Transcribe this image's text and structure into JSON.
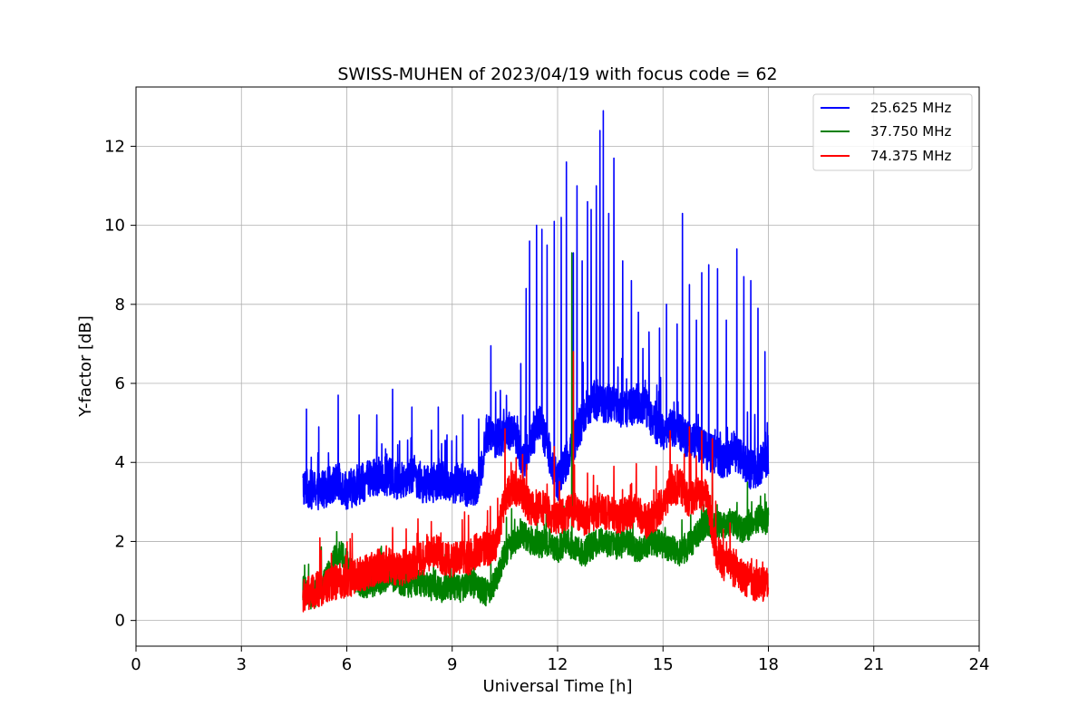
{
  "chart_data": {
    "type": "line",
    "title": "SWISS-MUHEN of 2023/04/19 with focus code = 62",
    "xlabel": "Universal Time [h]",
    "ylabel": "Y-factor [dB]",
    "xlim": [
      0,
      24
    ],
    "ylim": [
      -0.65,
      13.5
    ],
    "xticks": [
      0,
      3,
      6,
      9,
      12,
      15,
      18,
      21,
      24
    ],
    "yticks": [
      0,
      2,
      4,
      6,
      8,
      10,
      12
    ],
    "grid": true,
    "legend_position": "top-right",
    "series": [
      {
        "name": "25.625 MHz",
        "color": "#0000ff",
        "x": [
          4.75,
          5.0,
          5.25,
          5.5,
          5.75,
          6.0,
          6.25,
          6.5,
          6.75,
          7.0,
          7.25,
          7.5,
          7.75,
          8.0,
          8.25,
          8.5,
          8.75,
          9.0,
          9.25,
          9.5,
          9.75,
          10.0,
          10.25,
          10.5,
          10.75,
          11.0,
          11.25,
          11.5,
          11.75,
          12.0,
          12.25,
          12.5,
          12.75,
          13.0,
          13.25,
          13.5,
          13.75,
          14.0,
          14.25,
          14.5,
          14.75,
          15.0,
          15.25,
          15.5,
          15.75,
          16.0,
          16.25,
          16.5,
          16.75,
          17.0,
          17.25,
          17.5,
          17.75,
          18.0
        ],
        "y": [
          3.4,
          3.3,
          3.3,
          3.4,
          3.5,
          3.3,
          3.4,
          3.5,
          3.6,
          3.7,
          3.6,
          3.5,
          3.7,
          3.6,
          3.4,
          3.5,
          3.6,
          3.4,
          3.5,
          3.3,
          3.4,
          4.8,
          4.6,
          4.7,
          4.9,
          4.0,
          4.5,
          5.0,
          4.3,
          3.5,
          4.0,
          4.6,
          5.2,
          5.6,
          5.5,
          5.5,
          5.4,
          5.3,
          5.5,
          5.4,
          5.0,
          4.8,
          4.9,
          4.7,
          4.6,
          4.5,
          4.3,
          4.2,
          4.0,
          4.3,
          4.1,
          3.8,
          3.9,
          4.2
        ],
        "noise": 0.5,
        "spikes": [
          [
            4.85,
            5.35
          ],
          [
            5.2,
            4.9
          ],
          [
            5.75,
            5.7
          ],
          [
            6.35,
            5.2
          ],
          [
            6.85,
            5.2
          ],
          [
            7.3,
            5.85
          ],
          [
            7.85,
            5.4
          ],
          [
            8.6,
            5.4
          ],
          [
            9.3,
            5.2
          ],
          [
            9.75,
            5.1
          ],
          [
            10.1,
            6.95
          ],
          [
            10.5,
            5.0
          ],
          [
            10.95,
            6.5
          ],
          [
            11.1,
            8.4
          ],
          [
            11.2,
            9.6
          ],
          [
            11.4,
            10.0
          ],
          [
            11.55,
            9.9
          ],
          [
            11.7,
            9.5
          ],
          [
            11.9,
            10.1
          ],
          [
            12.1,
            10.2
          ],
          [
            12.25,
            11.6
          ],
          [
            12.45,
            9.3
          ],
          [
            12.55,
            11.0
          ],
          [
            12.7,
            9.1
          ],
          [
            12.85,
            10.6
          ],
          [
            12.95,
            10.4
          ],
          [
            13.1,
            11.0
          ],
          [
            13.2,
            12.4
          ],
          [
            13.3,
            12.9
          ],
          [
            13.45,
            10.3
          ],
          [
            13.6,
            11.7
          ],
          [
            13.85,
            9.1
          ],
          [
            14.1,
            8.6
          ],
          [
            14.3,
            7.8
          ],
          [
            14.6,
            7.3
          ],
          [
            14.9,
            7.4
          ],
          [
            15.1,
            8.0
          ],
          [
            15.4,
            7.5
          ],
          [
            15.55,
            10.3
          ],
          [
            15.75,
            8.5
          ],
          [
            15.95,
            7.6
          ],
          [
            16.1,
            8.8
          ],
          [
            16.3,
            9.0
          ],
          [
            16.55,
            8.9
          ],
          [
            16.8,
            7.6
          ],
          [
            17.1,
            9.4
          ],
          [
            17.3,
            8.7
          ],
          [
            17.5,
            8.6
          ],
          [
            17.7,
            7.9
          ],
          [
            17.9,
            6.8
          ]
        ]
      },
      {
        "name": "37.750 MHz",
        "color": "#008000",
        "x": [
          4.75,
          5.0,
          5.25,
          5.5,
          5.75,
          6.0,
          6.25,
          6.5,
          6.75,
          7.0,
          7.25,
          7.5,
          7.75,
          8.0,
          8.25,
          8.5,
          8.75,
          9.0,
          9.25,
          9.5,
          9.75,
          10.0,
          10.25,
          10.5,
          10.75,
          11.0,
          11.25,
          11.5,
          11.75,
          12.0,
          12.25,
          12.5,
          12.75,
          13.0,
          13.25,
          13.5,
          13.75,
          14.0,
          14.25,
          14.5,
          14.75,
          15.0,
          15.25,
          15.5,
          15.75,
          16.0,
          16.25,
          16.5,
          16.75,
          17.0,
          17.25,
          17.5,
          17.75,
          18.0
        ],
        "y": [
          0.8,
          0.6,
          0.8,
          1.2,
          1.8,
          1.5,
          1.0,
          0.9,
          0.9,
          1.0,
          1.1,
          1.0,
          0.9,
          1.0,
          0.9,
          0.8,
          0.8,
          0.9,
          0.8,
          1.0,
          0.8,
          0.7,
          1.0,
          1.7,
          2.0,
          2.2,
          2.0,
          1.9,
          2.0,
          1.8,
          2.0,
          1.8,
          1.7,
          1.9,
          2.0,
          1.9,
          1.9,
          2.0,
          1.8,
          1.9,
          2.0,
          1.9,
          1.8,
          1.7,
          1.9,
          2.2,
          2.5,
          2.4,
          2.4,
          2.5,
          2.3,
          2.4,
          2.6,
          2.5
        ],
        "noise": 0.35,
        "spikes": [
          [
            4.8,
            1.4
          ],
          [
            12.4,
            9.3
          ],
          [
            16.4,
            3.8
          ],
          [
            17.4,
            3.5
          ],
          [
            17.9,
            3.2
          ]
        ]
      },
      {
        "name": "74.375 MHz",
        "color": "#ff0000",
        "x": [
          4.75,
          5.0,
          5.25,
          5.5,
          5.75,
          6.0,
          6.25,
          6.5,
          6.75,
          7.0,
          7.25,
          7.5,
          7.75,
          8.0,
          8.25,
          8.5,
          8.75,
          9.0,
          9.25,
          9.5,
          9.75,
          10.0,
          10.25,
          10.5,
          10.75,
          11.0,
          11.25,
          11.5,
          11.75,
          12.0,
          12.25,
          12.5,
          12.75,
          13.0,
          13.25,
          13.5,
          13.75,
          14.0,
          14.25,
          14.5,
          14.75,
          15.0,
          15.25,
          15.5,
          15.75,
          16.0,
          16.25,
          16.5,
          16.75,
          17.0,
          17.25,
          17.5,
          17.75,
          18.0
        ],
        "y": [
          0.6,
          0.7,
          0.8,
          0.9,
          1.0,
          1.0,
          1.1,
          1.2,
          1.3,
          1.4,
          1.4,
          1.3,
          1.4,
          1.5,
          1.6,
          1.8,
          1.6,
          1.5,
          1.6,
          1.6,
          1.8,
          1.8,
          1.9,
          3.1,
          3.4,
          3.2,
          2.8,
          2.9,
          2.7,
          2.6,
          2.7,
          2.8,
          2.6,
          2.7,
          2.8,
          2.7,
          2.6,
          2.7,
          2.8,
          2.5,
          2.6,
          3.0,
          3.3,
          3.4,
          3.0,
          3.3,
          3.1,
          1.8,
          1.4,
          1.3,
          1.1,
          1.0,
          0.9,
          1.0
        ],
        "noise": 0.45,
        "spikes": [
          [
            4.75,
            0.0
          ],
          [
            6.15,
            2.2
          ],
          [
            7.3,
            2.35
          ],
          [
            8.4,
            2.5
          ],
          [
            10.5,
            4.85
          ],
          [
            11.0,
            4.2
          ],
          [
            11.9,
            4.4
          ],
          [
            12.45,
            6.8
          ],
          [
            13.6,
            3.9
          ],
          [
            14.8,
            3.9
          ],
          [
            15.2,
            4.8
          ],
          [
            15.75,
            4.9
          ],
          [
            16.1,
            4.8
          ],
          [
            16.4,
            4.6
          ]
        ]
      }
    ]
  }
}
